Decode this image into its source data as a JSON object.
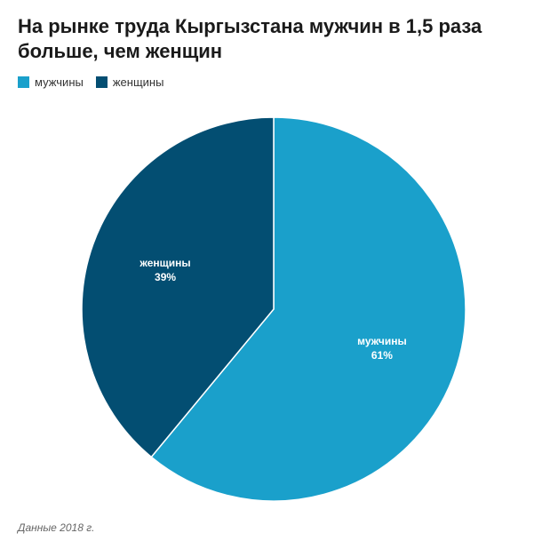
{
  "title": "На рынке труда Кыргызстана мужчин в 1,5 раза больше, чем женщин",
  "note": "Данные 2018 г.",
  "chart_data": {
    "type": "pie",
    "series": [
      {
        "name": "мужчины",
        "value": 61,
        "label": "61%",
        "color": "#1aa0cb"
      },
      {
        "name": "женщины",
        "value": 39,
        "label": "39%",
        "color": "#034e72"
      }
    ],
    "legend": "top-left"
  }
}
